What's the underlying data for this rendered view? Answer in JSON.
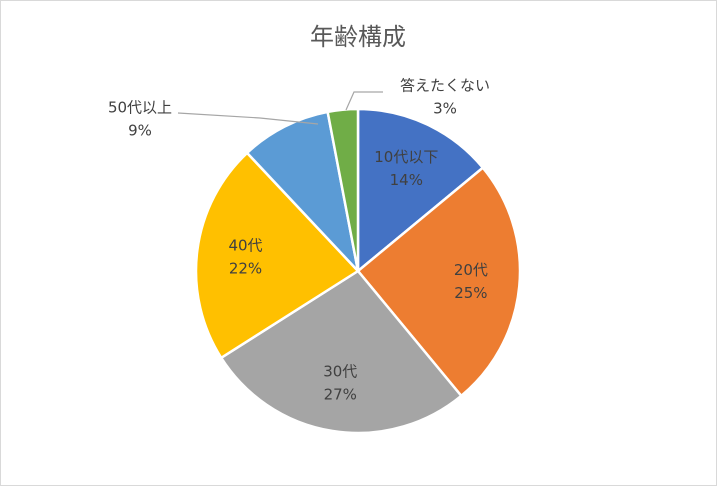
{
  "chart_data": {
    "type": "pie",
    "title": "年齢構成",
    "categories": [
      "10代以下",
      "20代",
      "30代",
      "40代",
      "50代以上",
      "答えたくない"
    ],
    "values": [
      14,
      25,
      27,
      22,
      9,
      3
    ],
    "value_labels": [
      "14%",
      "25%",
      "27%",
      "22%",
      "9%",
      "3%"
    ],
    "colors": [
      "#4472c4",
      "#ed7d31",
      "#a5a5a5",
      "#ffc000",
      "#5b9bd5",
      "#70ad47"
    ]
  }
}
